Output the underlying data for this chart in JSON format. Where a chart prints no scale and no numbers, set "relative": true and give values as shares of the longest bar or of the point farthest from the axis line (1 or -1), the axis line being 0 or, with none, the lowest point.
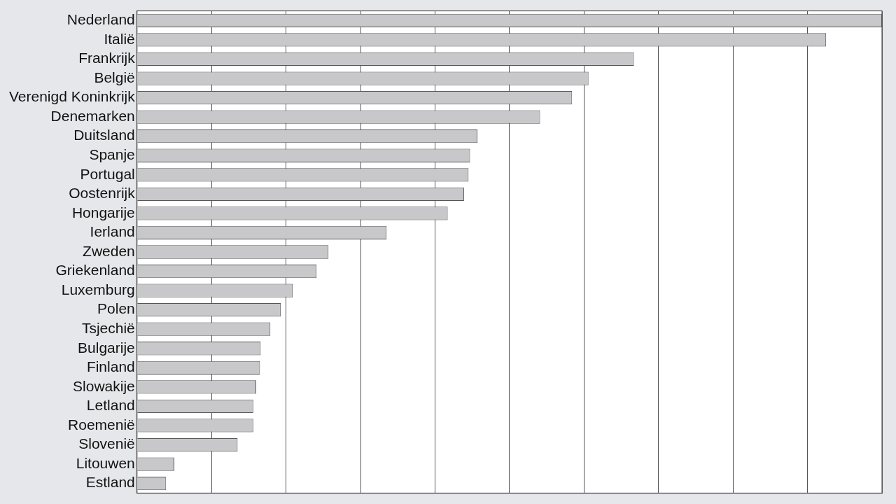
{
  "chart_data": {
    "type": "bar",
    "orientation": "horizontal",
    "relative": true,
    "grid": "x",
    "color": "#c8c8ca",
    "categories": [
      "Nederland",
      "Italië",
      "Frankrijk",
      "België",
      "Verenigd Koninkrijk",
      "Denemarken",
      "Duitsland",
      "Spanje",
      "Portugal",
      "Oostenrijk",
      "Hongarije",
      "Ierland",
      "Zweden",
      "Griekenland",
      "Luxemburg",
      "Polen",
      "Tsjechië",
      "Bulgarije",
      "Finland",
      "Slowakije",
      "Letland",
      "Roemenië",
      "Slovenië",
      "Litouwen",
      "Estland"
    ],
    "values": [
      1,
      0.925,
      0.667,
      0.606,
      0.584,
      0.541,
      0.457,
      0.447,
      0.445,
      0.439,
      0.417,
      0.335,
      0.257,
      0.241,
      0.209,
      0.193,
      0.179,
      0.166,
      0.165,
      0.16,
      0.156,
      0.156,
      0.135,
      0.05,
      0.039
    ]
  }
}
